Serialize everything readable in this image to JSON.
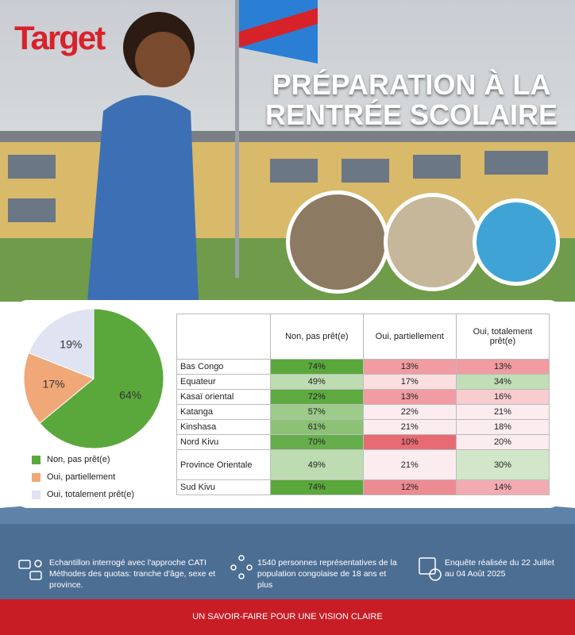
{
  "header": {
    "brand": "Target",
    "title": "PRÉPARATION À LA RENTRÉE SCOLAIRE"
  },
  "chart_data": {
    "type": "pie",
    "categories": [
      "Non, pas prêt(e)",
      "Oui, partiellement",
      "Oui, totalement prêt(e)"
    ],
    "values": [
      64,
      17,
      19
    ],
    "value_labels": [
      "64%",
      "17%",
      "19%"
    ],
    "colors": [
      "#5aa83c",
      "#f0a878",
      "#dfe3f2"
    ],
    "legend": "bottom"
  },
  "table": {
    "header": [
      "Non, pas prêt(e)",
      "Oui, partiellement",
      "Oui, totalement prêt(e)"
    ],
    "rows": [
      [
        "Bas Congo",
        "74%",
        "13%",
        "13%"
      ],
      [
        "Equateur",
        "49%",
        "17%",
        "34%"
      ],
      [
        "Kasaï oriental",
        "72%",
        "13%",
        "16%"
      ],
      [
        "Katanga",
        "57%",
        "22%",
        "21%"
      ],
      [
        "Kinshasa",
        "61%",
        "21%",
        "18%"
      ],
      [
        "Nord Kivu",
        "70%",
        "10%",
        "20%"
      ],
      [
        "Province Orientale",
        "49%",
        "21%",
        "30%"
      ],
      [
        "Sud Kivu",
        "74%",
        "12%",
        "14%"
      ]
    ]
  },
  "footer": {
    "items": [
      "Echantillon interrogé avec l'approche CATI Méthodes des quotas: tranche d'âge, sexe et province.",
      "1540 personnes représentatives de la population congolaise de 18 ans et plus",
      "Enquête réalisée du  22 Juillet au 04 Août 2025"
    ],
    "tagline": "UN SAVOIR-FAIRE POUR UNE VISION CLAIRE"
  }
}
